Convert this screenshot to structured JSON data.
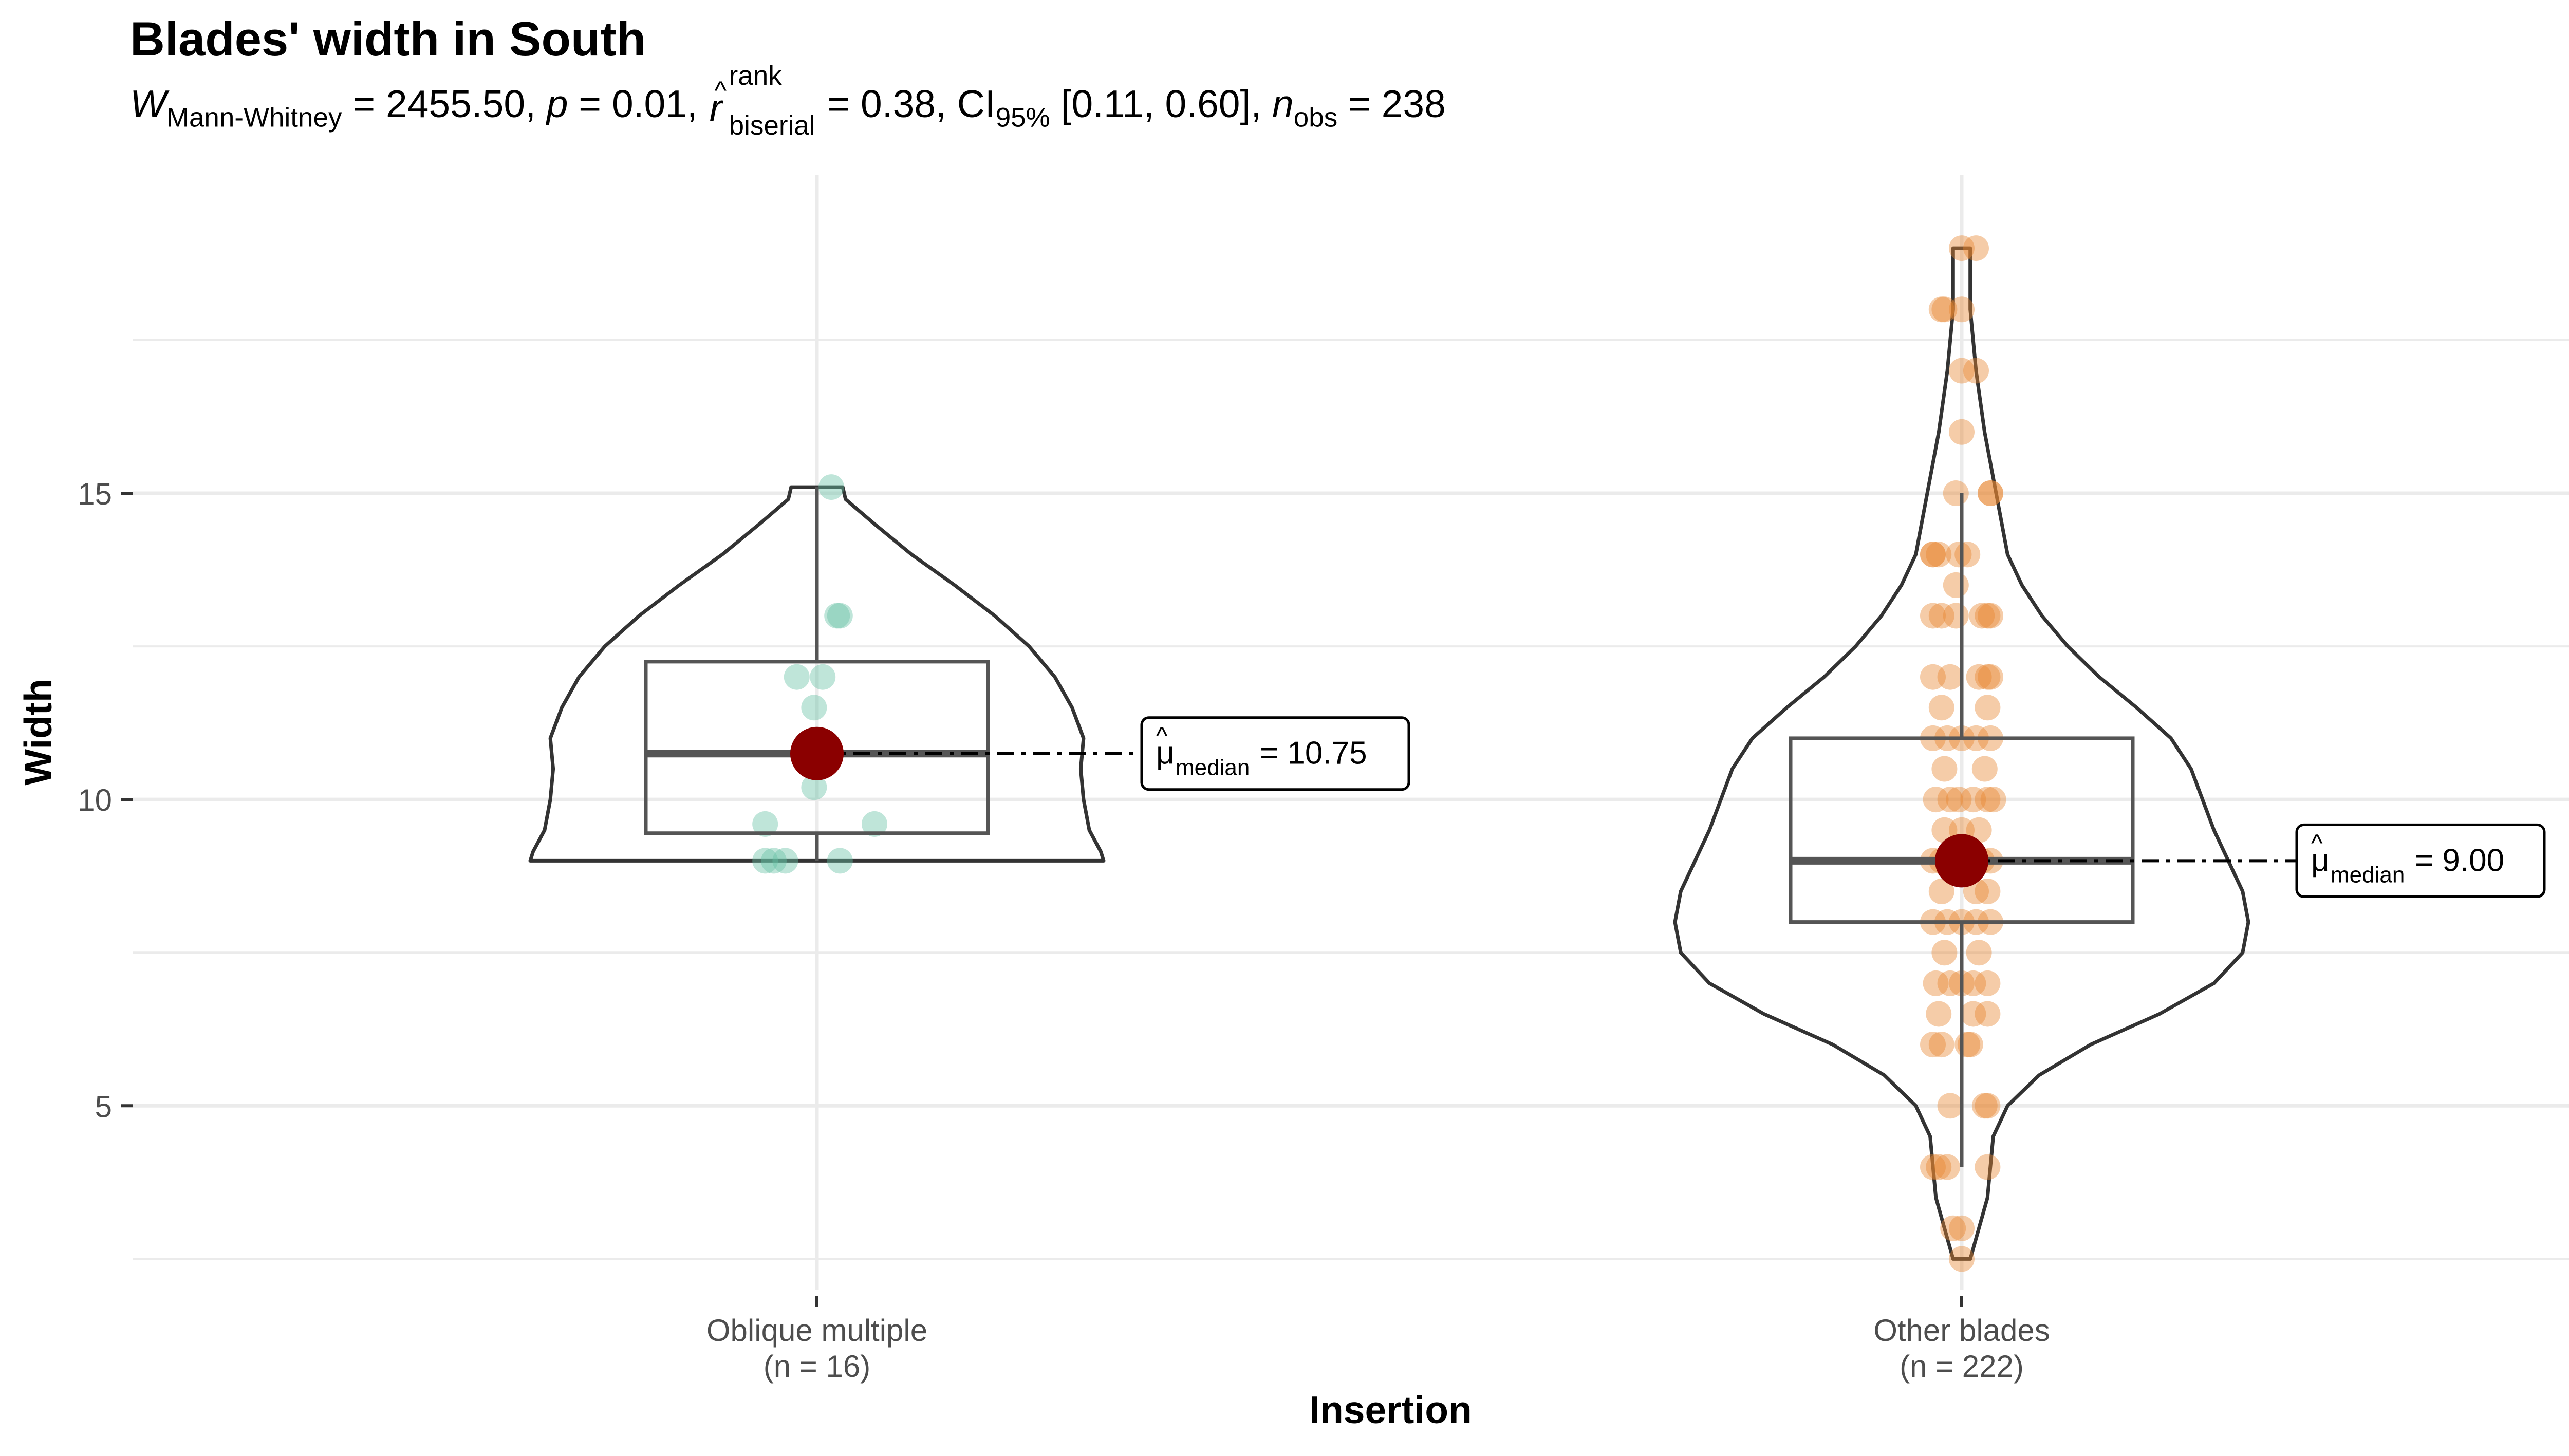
{
  "chart_data": {
    "type": "violin-box-scatter",
    "title": "Blades' width in South",
    "subtitle": {
      "stat_symbol": "W",
      "stat_subscript": "Mann-Whitney",
      "stat_value": " = 2455.50, ",
      "p_symbol": "p",
      "p_value": " = 0.01, ",
      "r_symbol": "r",
      "r_superscript": "rank",
      "r_subscript": "biserial",
      "r_value": " = 0.38, ",
      "ci_label": "CI",
      "ci_subscript": "95%",
      "ci_value": " [0.11, 0.60], ",
      "n_symbol": "n",
      "n_subscript": "obs",
      "n_value": " = 238"
    },
    "xlabel": "Insertion",
    "ylabel": "Width",
    "ylim": [
      2.0,
      20.2
    ],
    "yticks": [
      5,
      10,
      15
    ],
    "grid": true,
    "colors": {
      "group1": "#66C2A5",
      "group2": "#E6852F",
      "median_point": "#8B0000",
      "outline": "#333333",
      "grid": "#EBEBEB"
    },
    "groups": [
      {
        "name": "Oblique multiple",
        "n_label": "(n = 16)",
        "median_label": "= 10.75",
        "median": 10.75,
        "q1": 9.45,
        "q3": 12.25,
        "whisker_low": 9.0,
        "whisker_high": 15.1,
        "violin_density": [
          [
            9.0,
            1.0
          ],
          [
            9.15,
            0.99
          ],
          [
            9.5,
            0.95
          ],
          [
            10.0,
            0.93
          ],
          [
            10.5,
            0.92
          ],
          [
            11.0,
            0.93
          ],
          [
            11.5,
            0.89
          ],
          [
            12.0,
            0.83
          ],
          [
            12.5,
            0.74
          ],
          [
            13.0,
            0.62
          ],
          [
            13.5,
            0.48
          ],
          [
            14.0,
            0.33
          ],
          [
            14.5,
            0.2
          ],
          [
            14.9,
            0.1
          ],
          [
            15.1,
            0.09
          ]
        ],
        "points": [
          [
            -0.18,
            9.0
          ],
          [
            -0.15,
            9.0
          ],
          [
            -0.11,
            9.0
          ],
          [
            0.08,
            9.0
          ],
          [
            -0.18,
            9.6
          ],
          [
            0.2,
            9.6
          ],
          [
            -0.01,
            10.2
          ],
          [
            -0.01,
            10.8
          ],
          [
            -0.07,
            12.0
          ],
          [
            0.02,
            12.0
          ],
          [
            -0.01,
            11.5
          ],
          [
            0.07,
            13.0
          ],
          [
            0.08,
            13.0
          ],
          [
            0.05,
            15.1
          ]
        ]
      },
      {
        "name": "Other blades",
        "n_label": "(n = 222)",
        "median_label": "= 9.00",
        "median": 9.0,
        "q1": 8.0,
        "q3": 11.0,
        "whisker_low": 4.0,
        "whisker_high": 15.0,
        "violin_density": [
          [
            2.5,
            0.03
          ],
          [
            3.0,
            0.06
          ],
          [
            3.5,
            0.09
          ],
          [
            4.0,
            0.1
          ],
          [
            4.5,
            0.11
          ],
          [
            5.0,
            0.16
          ],
          [
            5.5,
            0.27
          ],
          [
            6.0,
            0.45
          ],
          [
            6.5,
            0.69
          ],
          [
            7.0,
            0.88
          ],
          [
            7.5,
            0.98
          ],
          [
            8.0,
            1.0
          ],
          [
            8.5,
            0.98
          ],
          [
            9.0,
            0.93
          ],
          [
            9.5,
            0.88
          ],
          [
            10.0,
            0.84
          ],
          [
            10.5,
            0.8
          ],
          [
            11.0,
            0.73
          ],
          [
            11.5,
            0.61
          ],
          [
            12.0,
            0.48
          ],
          [
            12.5,
            0.37
          ],
          [
            13.0,
            0.28
          ],
          [
            13.5,
            0.21
          ],
          [
            14.0,
            0.16
          ],
          [
            15.0,
            0.12
          ],
          [
            16.0,
            0.08
          ],
          [
            17.0,
            0.05
          ],
          [
            18.0,
            0.03
          ],
          [
            18.6,
            0.03
          ],
          [
            19.0,
            0.03
          ]
        ],
        "points": [
          [
            -0.06,
            18.0
          ],
          [
            -0.07,
            18.0
          ],
          [
            0.0,
            18.0
          ],
          [
            0.05,
            19.0
          ],
          [
            0.0,
            19.0
          ],
          [
            0.05,
            17.0
          ],
          [
            0.0,
            17.0
          ],
          [
            0.0,
            16.0
          ],
          [
            -0.02,
            15.0
          ],
          [
            0.1,
            15.0
          ],
          [
            0.1,
            15.0
          ],
          [
            -0.1,
            14.0
          ],
          [
            -0.1,
            14.0
          ],
          [
            -0.08,
            14.0
          ],
          [
            0.02,
            14.0
          ],
          [
            -0.01,
            14.0
          ],
          [
            -0.1,
            13.0
          ],
          [
            -0.07,
            13.0
          ],
          [
            -0.02,
            13.0
          ],
          [
            0.07,
            13.0
          ],
          [
            0.09,
            13.0
          ],
          [
            0.1,
            13.0
          ],
          [
            -0.02,
            13.5
          ],
          [
            -0.1,
            12.0
          ],
          [
            -0.04,
            12.0
          ],
          [
            0.06,
            12.0
          ],
          [
            0.09,
            12.0
          ],
          [
            0.1,
            12.0
          ],
          [
            -0.07,
            11.5
          ],
          [
            0.09,
            11.5
          ],
          [
            -0.1,
            11.0
          ],
          [
            -0.05,
            11.0
          ],
          [
            0.0,
            11.0
          ],
          [
            0.05,
            11.0
          ],
          [
            0.1,
            11.0
          ],
          [
            -0.06,
            10.5
          ],
          [
            0.08,
            10.5
          ],
          [
            -0.09,
            10.0
          ],
          [
            -0.04,
            10.0
          ],
          [
            -0.01,
            10.0
          ],
          [
            0.04,
            10.0
          ],
          [
            0.09,
            10.0
          ],
          [
            0.11,
            10.0
          ],
          [
            -0.06,
            9.5
          ],
          [
            0.0,
            9.5
          ],
          [
            0.06,
            9.5
          ],
          [
            -0.1,
            9.0
          ],
          [
            -0.07,
            9.0
          ],
          [
            0.0,
            9.0
          ],
          [
            0.07,
            9.0
          ],
          [
            0.1,
            9.0
          ],
          [
            -0.07,
            8.5
          ],
          [
            0.05,
            8.5
          ],
          [
            0.09,
            8.5
          ],
          [
            -0.1,
            8.0
          ],
          [
            -0.05,
            8.0
          ],
          [
            0.0,
            8.0
          ],
          [
            0.05,
            8.0
          ],
          [
            0.1,
            8.0
          ],
          [
            -0.06,
            7.5
          ],
          [
            0.06,
            7.5
          ],
          [
            -0.09,
            7.0
          ],
          [
            -0.04,
            7.0
          ],
          [
            0.0,
            7.0
          ],
          [
            0.04,
            7.0
          ],
          [
            0.09,
            7.0
          ],
          [
            -0.08,
            6.5
          ],
          [
            0.04,
            6.5
          ],
          [
            0.09,
            6.5
          ],
          [
            -0.1,
            6.0
          ],
          [
            -0.07,
            6.0
          ],
          [
            0.03,
            6.0
          ],
          [
            0.02,
            6.0
          ],
          [
            -0.04,
            5.0
          ],
          [
            0.08,
            5.0
          ],
          [
            0.09,
            5.0
          ],
          [
            -0.1,
            4.0
          ],
          [
            -0.08,
            4.0
          ],
          [
            -0.05,
            4.0
          ],
          [
            0.09,
            4.0
          ],
          [
            -0.03,
            3.0
          ],
          [
            0.0,
            3.0
          ],
          [
            0.0,
            2.5
          ]
        ]
      }
    ]
  }
}
